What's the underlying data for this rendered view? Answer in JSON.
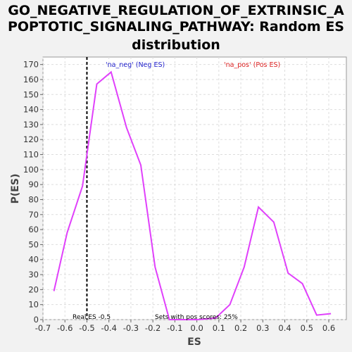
{
  "chart_data": {
    "type": "line",
    "title_lines": [
      "GO_NEGATIVE_REGULATION_OF_EXTRINSIC_A",
      "POPTOTIC_SIGNALING_PATHWAY: Random ES",
      "distribution"
    ],
    "xlabel": "ES",
    "ylabel": "P(ES)",
    "xlim": [
      -0.7,
      0.68
    ],
    "ylim": [
      0,
      175
    ],
    "xticks": [
      "-0.7",
      "-0.6",
      "-0.5",
      "-0.4",
      "-0.3",
      "-0.2",
      "-0.1",
      "0.0",
      "0.1",
      "0.2",
      "0.3",
      "0.4",
      "0.5",
      "0.6"
    ],
    "yticks": [
      "0",
      "10",
      "20",
      "30",
      "40",
      "50",
      "60",
      "70",
      "80",
      "90",
      "100",
      "110",
      "120",
      "130",
      "140",
      "150",
      "160",
      "170"
    ],
    "grid": true,
    "series": [
      {
        "color": "#e040fb",
        "x": [
          -0.65,
          -0.59,
          -0.52,
          -0.455,
          -0.39,
          -0.32,
          -0.255,
          -0.19,
          -0.125,
          -0.06,
          0.0,
          0.085,
          0.15,
          0.215,
          0.28,
          0.35,
          0.415,
          0.48,
          0.545,
          0.61
        ],
        "y": [
          19,
          58,
          89,
          157,
          165,
          128,
          103,
          35,
          0,
          0,
          0,
          1,
          10,
          35,
          75,
          65,
          31,
          24,
          3,
          4
        ]
      }
    ],
    "real_es_line": {
      "x": -0.5,
      "label": "Real ES -0.5"
    },
    "legend": [
      {
        "text": "'na_neg' (Neg ES)",
        "color": "#2222cc"
      },
      {
        "text": "'na_pos' (Pos ES)",
        "color": "#dd2222"
      }
    ],
    "annotations": {
      "pos_scores": "Sets with pos scores: 25%"
    }
  }
}
